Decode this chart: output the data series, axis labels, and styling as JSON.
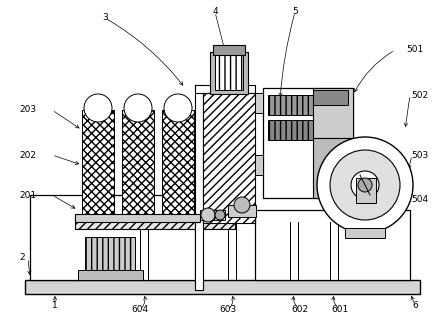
{
  "background_color": "#ffffff",
  "line_color": "#000000",
  "gray_light": "#cccccc",
  "gray_med": "#aaaaaa",
  "gray_dark": "#888888"
}
